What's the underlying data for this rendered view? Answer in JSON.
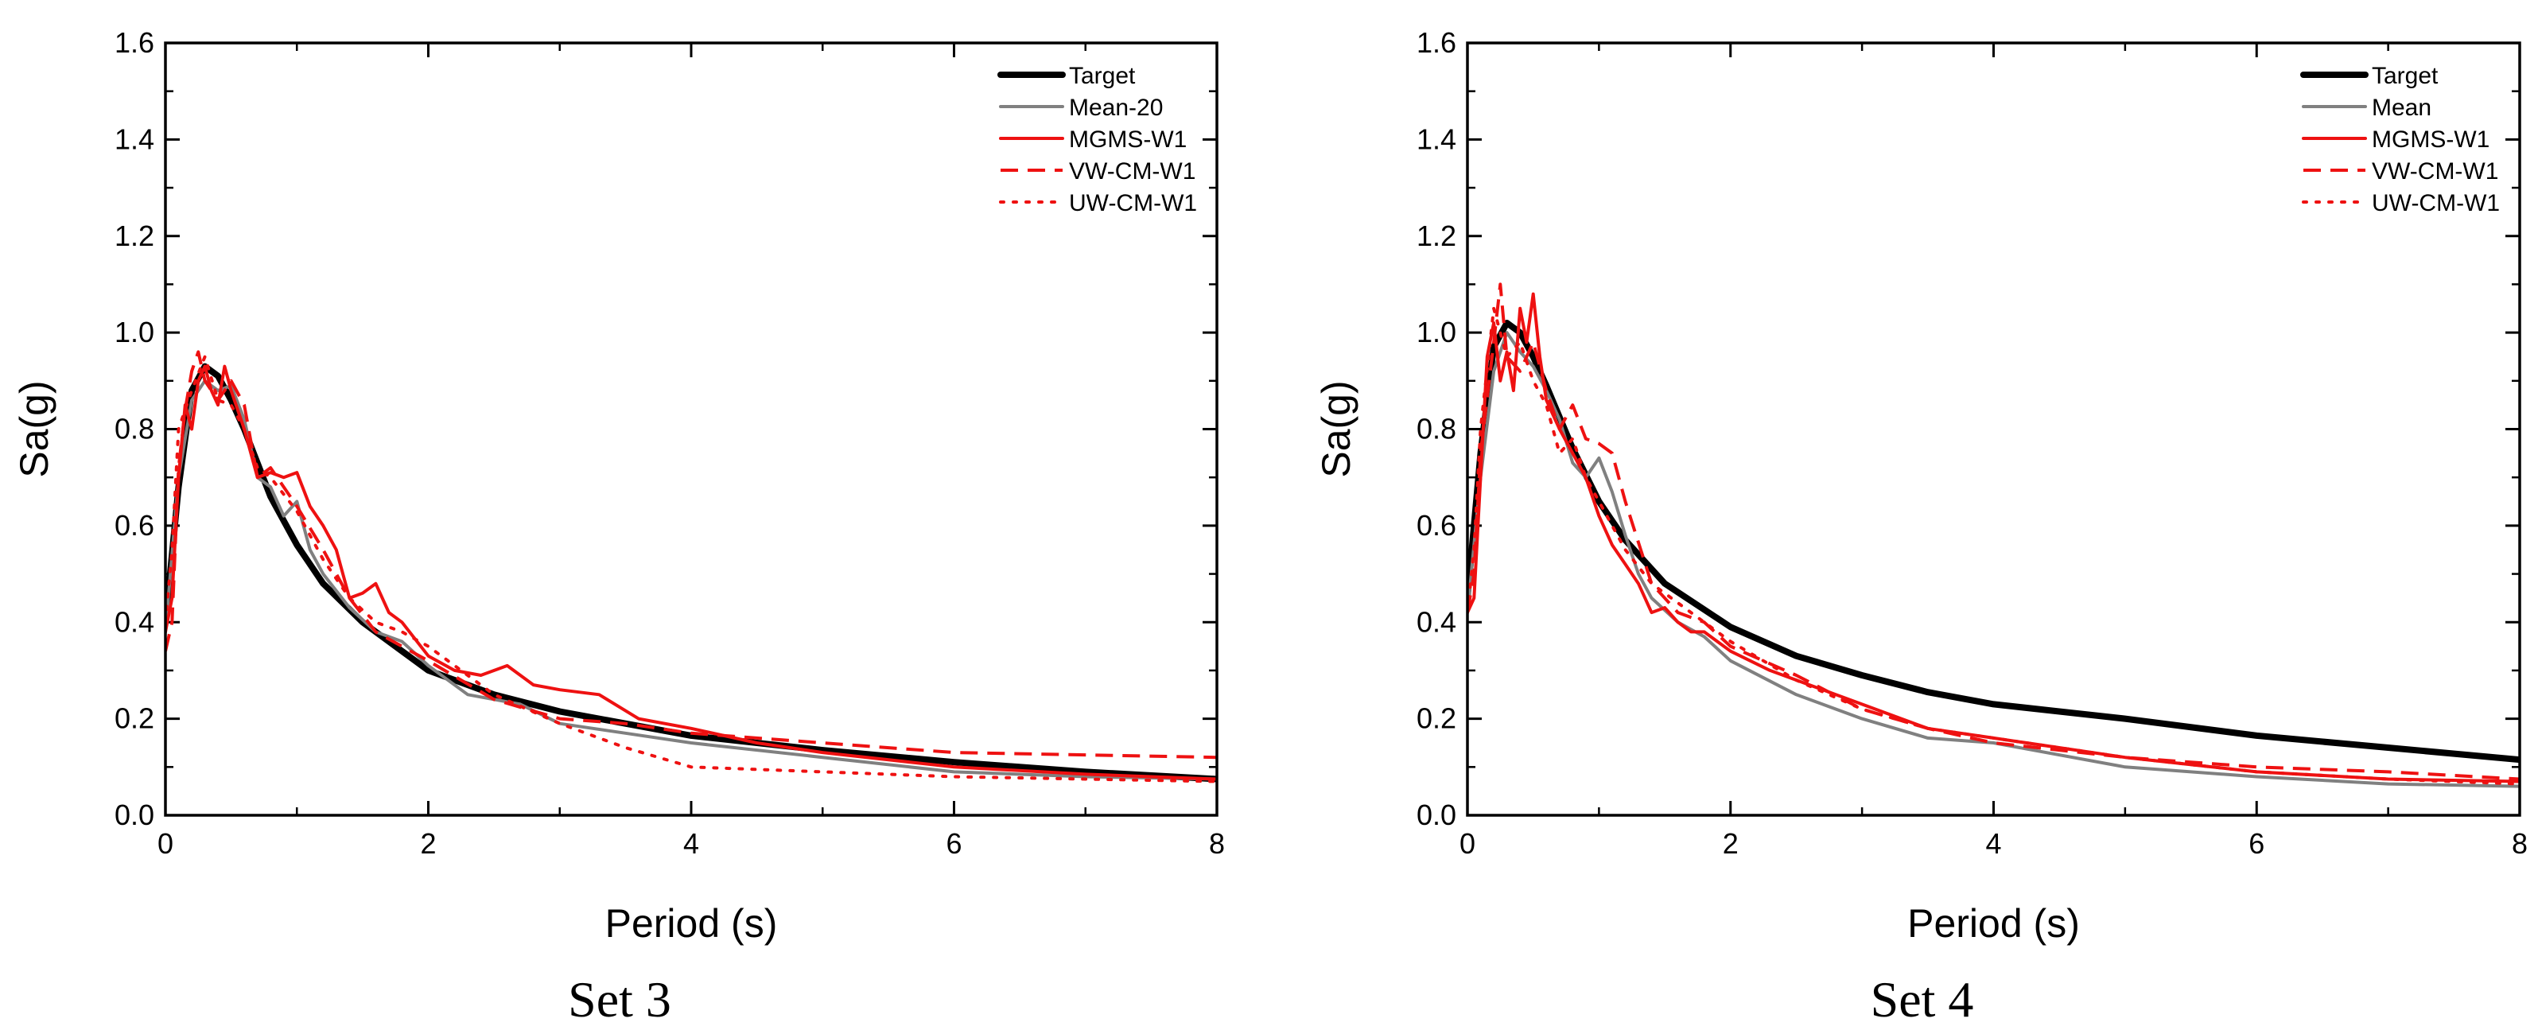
{
  "chart_data": [
    {
      "type": "line",
      "caption": "Set 3",
      "xlabel": "Period (s)",
      "ylabel": "Sa(g)",
      "xlim": [
        0,
        8
      ],
      "ylim": [
        0,
        1.6
      ],
      "xticks": [
        "0",
        "2",
        "4",
        "6",
        "8"
      ],
      "yticks": [
        "0.0",
        "0.2",
        "0.4",
        "0.6",
        "0.8",
        "1.0",
        "1.2",
        "1.4",
        "1.6"
      ],
      "legend_position": "top-right",
      "series": [
        {
          "name": "Target",
          "color": "#000000",
          "style": "solid-thick",
          "x": [
            0,
            0.1,
            0.2,
            0.3,
            0.4,
            0.5,
            0.6,
            0.8,
            1.0,
            1.2,
            1.5,
            2.0,
            2.5,
            3.0,
            3.5,
            4.0,
            5.0,
            6.0,
            7.0,
            8.0
          ],
          "y": [
            0.4,
            0.68,
            0.88,
            0.93,
            0.91,
            0.86,
            0.8,
            0.66,
            0.56,
            0.48,
            0.4,
            0.3,
            0.25,
            0.215,
            0.19,
            0.165,
            0.135,
            0.11,
            0.09,
            0.075
          ]
        },
        {
          "name": "Mean-20",
          "color": "#808080",
          "style": "solid",
          "x": [
            0,
            0.1,
            0.2,
            0.3,
            0.4,
            0.5,
            0.6,
            0.7,
            0.8,
            0.9,
            1.0,
            1.1,
            1.2,
            1.4,
            1.6,
            1.8,
            2.0,
            2.3,
            2.7,
            3.0,
            3.5,
            4.0,
            5.0,
            6.0,
            7.0,
            8.0
          ],
          "y": [
            0.38,
            0.7,
            0.86,
            0.9,
            0.88,
            0.89,
            0.82,
            0.7,
            0.68,
            0.62,
            0.65,
            0.55,
            0.5,
            0.43,
            0.38,
            0.36,
            0.31,
            0.25,
            0.23,
            0.19,
            0.17,
            0.15,
            0.12,
            0.09,
            0.08,
            0.075
          ]
        },
        {
          "name": "MGMS-W1",
          "color": "#ee1111",
          "style": "solid",
          "x": [
            0,
            0.05,
            0.1,
            0.15,
            0.2,
            0.25,
            0.3,
            0.35,
            0.4,
            0.45,
            0.5,
            0.6,
            0.7,
            0.8,
            0.9,
            1.0,
            1.1,
            1.2,
            1.3,
            1.4,
            1.5,
            1.6,
            1.7,
            1.8,
            2.0,
            2.2,
            2.4,
            2.6,
            2.8,
            3.0,
            3.3,
            3.6,
            4.0,
            4.5,
            5.0,
            6.0,
            7.0,
            8.0
          ],
          "y": [
            0.38,
            0.45,
            0.7,
            0.85,
            0.8,
            0.9,
            0.93,
            0.88,
            0.85,
            0.93,
            0.88,
            0.8,
            0.7,
            0.71,
            0.7,
            0.71,
            0.64,
            0.6,
            0.55,
            0.45,
            0.46,
            0.48,
            0.42,
            0.4,
            0.33,
            0.3,
            0.29,
            0.31,
            0.27,
            0.26,
            0.25,
            0.2,
            0.18,
            0.15,
            0.13,
            0.1,
            0.085,
            0.075
          ]
        },
        {
          "name": "VW-CM-W1",
          "color": "#ee1111",
          "style": "dashed",
          "x": [
            0,
            0.05,
            0.1,
            0.15,
            0.2,
            0.25,
            0.3,
            0.35,
            0.4,
            0.5,
            0.6,
            0.7,
            0.8,
            1.0,
            1.2,
            1.4,
            1.6,
            1.8,
            2.0,
            2.5,
            3.0,
            3.5,
            4.0,
            5.0,
            6.0,
            7.0,
            8.0
          ],
          "y": [
            0.34,
            0.4,
            0.72,
            0.84,
            0.92,
            0.96,
            0.9,
            0.88,
            0.86,
            0.9,
            0.85,
            0.7,
            0.72,
            0.64,
            0.55,
            0.45,
            0.38,
            0.35,
            0.32,
            0.24,
            0.2,
            0.19,
            0.17,
            0.15,
            0.13,
            0.125,
            0.12
          ]
        },
        {
          "name": "UW-CM-W1",
          "color": "#ee1111",
          "style": "dotted",
          "x": [
            0,
            0.05,
            0.1,
            0.2,
            0.3,
            0.4,
            0.5,
            0.6,
            0.7,
            0.8,
            1.0,
            1.2,
            1.4,
            1.6,
            1.8,
            2.0,
            2.5,
            3.0,
            3.5,
            4.0,
            5.0,
            6.0,
            7.0,
            8.0
          ],
          "y": [
            0.4,
            0.55,
            0.8,
            0.88,
            0.95,
            0.86,
            0.85,
            0.8,
            0.72,
            0.7,
            0.63,
            0.53,
            0.45,
            0.4,
            0.38,
            0.35,
            0.25,
            0.19,
            0.14,
            0.1,
            0.09,
            0.08,
            0.075,
            0.07
          ]
        }
      ]
    },
    {
      "type": "line",
      "caption": "Set 4",
      "xlabel": "Period (s)",
      "ylabel": "Sa(g)",
      "xlim": [
        0,
        8
      ],
      "ylim": [
        0,
        1.6
      ],
      "xticks": [
        "0",
        "2",
        "4",
        "6",
        "8"
      ],
      "yticks": [
        "0.0",
        "0.2",
        "0.4",
        "0.6",
        "0.8",
        "1.0",
        "1.2",
        "1.4",
        "1.6"
      ],
      "legend_position": "top-right",
      "series": [
        {
          "name": "Target",
          "color": "#000000",
          "style": "solid-thick",
          "x": [
            0,
            0.1,
            0.2,
            0.3,
            0.4,
            0.5,
            0.6,
            0.8,
            1.0,
            1.2,
            1.5,
            2.0,
            2.5,
            3.0,
            3.5,
            4.0,
            5.0,
            6.0,
            7.0,
            8.0
          ],
          "y": [
            0.45,
            0.75,
            0.97,
            1.02,
            1.0,
            0.95,
            0.89,
            0.76,
            0.65,
            0.57,
            0.48,
            0.39,
            0.33,
            0.29,
            0.255,
            0.23,
            0.2,
            0.165,
            0.14,
            0.115
          ]
        },
        {
          "name": "Mean",
          "color": "#808080",
          "style": "solid",
          "x": [
            0,
            0.1,
            0.2,
            0.3,
            0.4,
            0.5,
            0.6,
            0.7,
            0.8,
            0.9,
            1.0,
            1.1,
            1.2,
            1.3,
            1.4,
            1.6,
            1.8,
            2.0,
            2.5,
            3.0,
            3.5,
            4.0,
            5.0,
            6.0,
            7.0,
            8.0
          ],
          "y": [
            0.42,
            0.7,
            0.92,
            1.0,
            0.96,
            0.93,
            0.88,
            0.82,
            0.73,
            0.7,
            0.74,
            0.67,
            0.58,
            0.5,
            0.45,
            0.4,
            0.37,
            0.32,
            0.25,
            0.2,
            0.16,
            0.15,
            0.1,
            0.08,
            0.065,
            0.06
          ]
        },
        {
          "name": "MGMS-W1",
          "color": "#ee1111",
          "style": "solid",
          "x": [
            0,
            0.05,
            0.1,
            0.15,
            0.2,
            0.25,
            0.3,
            0.35,
            0.4,
            0.45,
            0.5,
            0.55,
            0.6,
            0.7,
            0.8,
            0.9,
            1.0,
            1.1,
            1.2,
            1.3,
            1.4,
            1.5,
            1.6,
            1.7,
            1.8,
            2.0,
            2.3,
            2.6,
            3.0,
            3.5,
            4.0,
            5.0,
            6.0,
            7.0,
            8.0
          ],
          "y": [
            0.42,
            0.45,
            0.7,
            0.95,
            1.02,
            0.9,
            0.96,
            0.88,
            1.05,
            0.98,
            1.08,
            0.95,
            0.86,
            0.8,
            0.75,
            0.7,
            0.62,
            0.56,
            0.52,
            0.48,
            0.42,
            0.43,
            0.4,
            0.38,
            0.38,
            0.34,
            0.3,
            0.27,
            0.23,
            0.18,
            0.16,
            0.12,
            0.09,
            0.075,
            0.07
          ]
        },
        {
          "name": "VW-CM-W1",
          "color": "#ee1111",
          "style": "dashed",
          "x": [
            0,
            0.05,
            0.1,
            0.2,
            0.25,
            0.3,
            0.4,
            0.5,
            0.6,
            0.7,
            0.8,
            0.9,
            1.0,
            1.1,
            1.2,
            1.4,
            1.6,
            1.8,
            2.0,
            2.5,
            3.0,
            3.5,
            4.0,
            5.0,
            6.0,
            7.0,
            8.0
          ],
          "y": [
            0.42,
            0.5,
            0.75,
            0.98,
            1.1,
            0.95,
            0.92,
            0.98,
            0.88,
            0.8,
            0.85,
            0.78,
            0.77,
            0.75,
            0.65,
            0.48,
            0.42,
            0.4,
            0.35,
            0.29,
            0.22,
            0.18,
            0.15,
            0.12,
            0.1,
            0.09,
            0.075
          ]
        },
        {
          "name": "UW-CM-W1",
          "color": "#ee1111",
          "style": "dotted",
          "x": [
            0,
            0.05,
            0.1,
            0.2,
            0.3,
            0.4,
            0.5,
            0.6,
            0.7,
            0.8,
            0.9,
            1.0,
            1.2,
            1.4,
            1.6,
            1.8,
            2.0,
            2.5,
            3.0,
            3.5,
            4.0,
            5.0,
            6.0,
            7.0,
            8.0
          ],
          "y": [
            0.42,
            0.55,
            0.8,
            1.05,
            0.95,
            0.98,
            0.9,
            0.85,
            0.75,
            0.78,
            0.7,
            0.65,
            0.55,
            0.48,
            0.44,
            0.4,
            0.36,
            0.28,
            0.22,
            0.18,
            0.16,
            0.12,
            0.09,
            0.075,
            0.065
          ]
        }
      ]
    }
  ]
}
